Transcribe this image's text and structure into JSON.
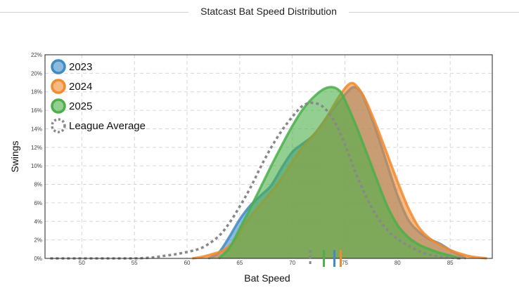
{
  "page": {
    "title": "Statcast Bat Speed Distribution"
  },
  "chart_data": {
    "type": "area",
    "xlabel": "Bat Speed",
    "ylabel": "Swings",
    "xlim": [
      46.5,
      89
    ],
    "ylim": [
      0,
      22
    ],
    "x_ticks": [
      50,
      55,
      60,
      65,
      70,
      75,
      80,
      85
    ],
    "y_ticks": [
      0,
      2,
      4,
      6,
      8,
      10,
      12,
      14,
      16,
      18,
      20,
      22
    ],
    "y_tick_suffix": "%",
    "grid": true,
    "legend_position": "top-left",
    "series": [
      {
        "name": "2023",
        "color": "#3f8bc4",
        "style": "filled",
        "mean_marker": 74.0,
        "points": [
          [
            62,
            0
          ],
          [
            63,
            0.6
          ],
          [
            64,
            2.3
          ],
          [
            65,
            4.2
          ],
          [
            66,
            5.7
          ],
          [
            67,
            6.8
          ],
          [
            68,
            7.9
          ],
          [
            69,
            9.8
          ],
          [
            70,
            11.5
          ],
          [
            71,
            12.4
          ],
          [
            72,
            13.3
          ],
          [
            73,
            14.8
          ],
          [
            74,
            16.3
          ],
          [
            75,
            17.7
          ],
          [
            75.8,
            18.5
          ],
          [
            76.5,
            18.0
          ],
          [
            77,
            16.8
          ],
          [
            78,
            13.7
          ],
          [
            79,
            10.2
          ],
          [
            80,
            6.8
          ],
          [
            81,
            4.2
          ],
          [
            82,
            2.9
          ],
          [
            83,
            2.1
          ],
          [
            84,
            1.6
          ],
          [
            85,
            0.9
          ],
          [
            86,
            0.3
          ],
          [
            86.5,
            0
          ]
        ]
      },
      {
        "name": "2024",
        "color": "#f28a2e",
        "style": "filled",
        "mean_marker": 74.6,
        "points": [
          [
            60.5,
            0
          ],
          [
            61.5,
            0.2
          ],
          [
            62.5,
            0.5
          ],
          [
            63.5,
            0.9
          ],
          [
            64.5,
            1.9
          ],
          [
            65.5,
            3.7
          ],
          [
            66.5,
            5.2
          ],
          [
            67.5,
            6.5
          ],
          [
            68.5,
            7.9
          ],
          [
            69.5,
            9.5
          ],
          [
            70.5,
            11.3
          ],
          [
            71.5,
            12.7
          ],
          [
            72.5,
            14.0
          ],
          [
            73.5,
            15.7
          ],
          [
            74.5,
            17.6
          ],
          [
            75.5,
            18.9
          ],
          [
            76.2,
            18.5
          ],
          [
            77,
            17.0
          ],
          [
            78,
            14.3
          ],
          [
            79,
            11.3
          ],
          [
            80,
            8.3
          ],
          [
            81,
            5.5
          ],
          [
            82,
            3.4
          ],
          [
            83,
            2.2
          ],
          [
            84,
            1.5
          ],
          [
            85,
            0.9
          ],
          [
            86,
            0.5
          ],
          [
            87,
            0.2
          ],
          [
            88.5,
            0
          ]
        ]
      },
      {
        "name": "2025",
        "color": "#4caf4a",
        "style": "filled",
        "mean_marker": 73.0,
        "points": [
          [
            63,
            0
          ],
          [
            64,
            1.1
          ],
          [
            65,
            3.2
          ],
          [
            66,
            5.4
          ],
          [
            67,
            7.7
          ],
          [
            68,
            10.0
          ],
          [
            69,
            12.2
          ],
          [
            70,
            14.3
          ],
          [
            71,
            16.1
          ],
          [
            72,
            17.4
          ],
          [
            73,
            18.3
          ],
          [
            73.8,
            18.5
          ],
          [
            74.5,
            18.1
          ],
          [
            75,
            17.1
          ],
          [
            76,
            14.5
          ],
          [
            77,
            11.6
          ],
          [
            78,
            8.6
          ],
          [
            79,
            5.7
          ],
          [
            80,
            3.6
          ],
          [
            81,
            2.3
          ],
          [
            82,
            1.5
          ],
          [
            83,
            1.0
          ],
          [
            84,
            0.6
          ],
          [
            85,
            0.3
          ],
          [
            86,
            0
          ]
        ]
      },
      {
        "name": "League Average",
        "color": "#888888",
        "style": "dashed",
        "mean_marker": 71.7,
        "points": [
          [
            47,
            0
          ],
          [
            55,
            0
          ],
          [
            58,
            0.3
          ],
          [
            60,
            0.7
          ],
          [
            61.5,
            1.2
          ],
          [
            63,
            2.4
          ],
          [
            64,
            3.8
          ],
          [
            65,
            5.6
          ],
          [
            66,
            7.6
          ],
          [
            67,
            9.9
          ],
          [
            68,
            12.0
          ],
          [
            69,
            13.8
          ],
          [
            70,
            15.3
          ],
          [
            71,
            16.5
          ],
          [
            72,
            16.8
          ],
          [
            73,
            16.3
          ],
          [
            74,
            14.8
          ],
          [
            75,
            12.3
          ],
          [
            76,
            9.3
          ],
          [
            77,
            6.7
          ],
          [
            78,
            4.6
          ],
          [
            79,
            3.1
          ],
          [
            80,
            2.1
          ],
          [
            81,
            1.4
          ],
          [
            82,
            0.8
          ],
          [
            83,
            0.4
          ],
          [
            84,
            0.2
          ],
          [
            85,
            0.1
          ],
          [
            86,
            0
          ]
        ]
      }
    ]
  }
}
